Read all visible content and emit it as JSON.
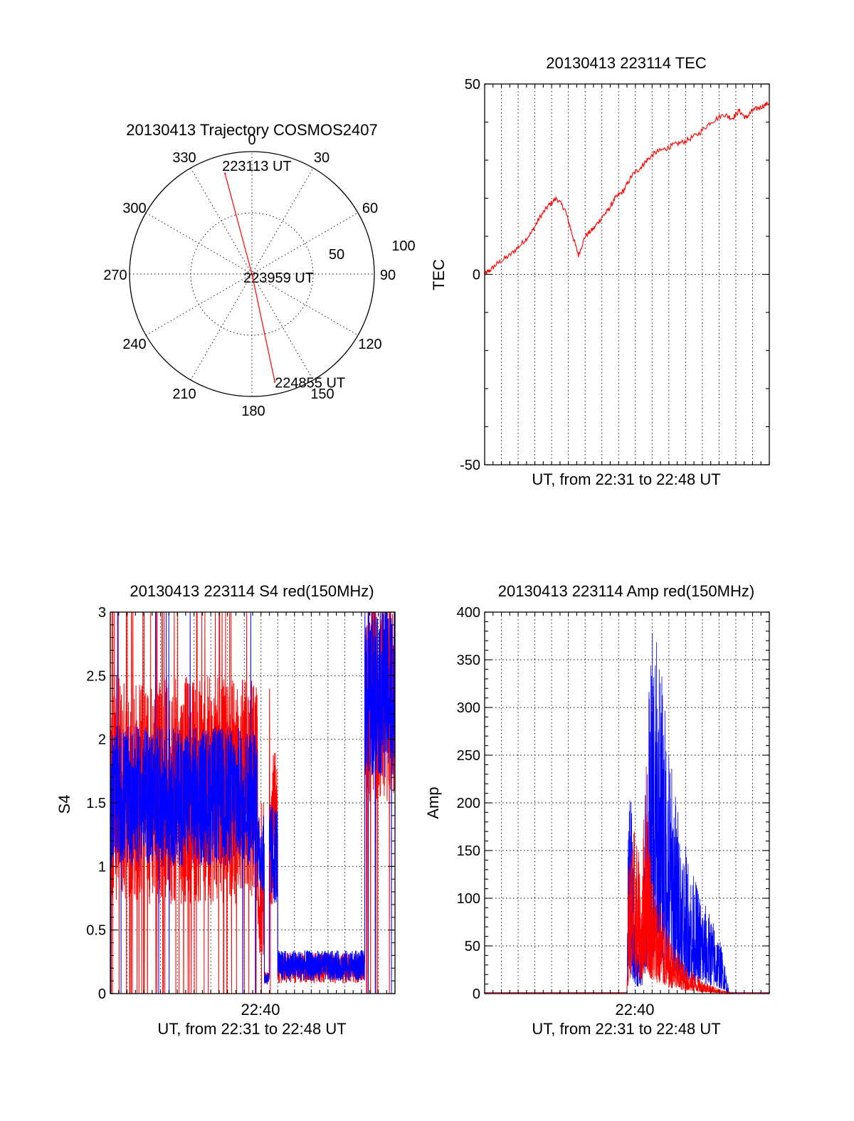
{
  "colors": {
    "red": "#ff0000",
    "blue": "#0000ff",
    "axes": "#000000",
    "background": "#ffffff"
  },
  "chart_data": [
    {
      "type": "polar",
      "title": "20130413 Trajectory COSMOS2407",
      "angle_labels": [
        "0",
        "30",
        "60",
        "90",
        "120",
        "150",
        "180",
        "210",
        "240",
        "270",
        "300",
        "330"
      ],
      "radius_labels": [
        "50",
        "100"
      ],
      "radius_values": [
        50,
        100
      ],
      "angle_direction": "clockwise from top",
      "series": [
        {
          "color": "red",
          "points": [
            {
              "angle": 345,
              "radius": 85,
              "label": "223113 UT"
            },
            {
              "angle": 0,
              "radius": 0,
              "label": "223959 UT"
            },
            {
              "angle": 168,
              "radius": 90,
              "label": "224855 UT"
            }
          ]
        }
      ]
    },
    {
      "type": "line",
      "title": "20130413 223114 TEC",
      "xlabel": "UT, from 22:31 to 22:48 UT",
      "ylabel": "TEC",
      "ylim": [
        -50,
        50
      ],
      "yticks": [
        -50,
        0,
        50
      ],
      "xlim_minutes": [
        0,
        17
      ],
      "xgrid_minutes": [
        1,
        2,
        3,
        4,
        5,
        6,
        7,
        8,
        9,
        10,
        11,
        12,
        13,
        14,
        15,
        16
      ],
      "ygrid": [
        0
      ],
      "series": [
        {
          "color": "red",
          "x_minutes": [
            0,
            0.3,
            0.8,
            1.5,
            2.2,
            2.8,
            3.3,
            3.8,
            4.3,
            4.8,
            5.2,
            5.6,
            6.0,
            6.5,
            7.0,
            7.4,
            7.8,
            8.3,
            8.8,
            9.3,
            9.7,
            10.2,
            10.8,
            11.3,
            12.0,
            12.8,
            13.5,
            14.3,
            14.8,
            15.2,
            15.6,
            16.0,
            16.5,
            17.0
          ],
          "y": [
            0,
            1,
            3,
            5,
            8,
            11,
            15,
            18,
            20,
            17,
            11,
            5,
            10,
            12,
            15,
            17,
            20,
            22,
            26,
            28,
            30,
            32,
            33,
            34,
            35,
            37,
            40,
            42,
            41,
            43,
            41,
            43,
            44,
            45
          ]
        }
      ]
    },
    {
      "type": "line",
      "title": "20130413 223114 S4 red(150MHz)",
      "xlabel": "UT, from 22:31 to 22:48 UT",
      "ylabel": "S4",
      "xtick_label": "22:40",
      "ylim": [
        0,
        3
      ],
      "yticks": [
        "0",
        "0.5",
        "1",
        "1.5",
        "2",
        "2.5",
        "3"
      ],
      "ytick_values": [
        0,
        0.5,
        1,
        1.5,
        2,
        2.5,
        3
      ],
      "xlim_minutes": [
        0,
        17
      ],
      "xgrid_minutes": [
        1,
        2,
        3,
        4,
        5,
        6,
        7,
        8,
        9,
        10,
        11,
        12,
        13,
        14,
        15,
        16
      ],
      "ygrid": [
        0.5,
        1,
        1.5,
        2,
        2.5
      ],
      "series": [
        {
          "color": "red",
          "segments": [
            {
              "x_start": 0,
              "x_end": 8.8,
              "mean": 1.6,
              "spread": 0.9,
              "spikes_to": 3,
              "spike_density": 0.5
            },
            {
              "x_start": 8.8,
              "x_end": 9.2,
              "mean": 0.7,
              "spread": 0.4,
              "spikes_to": 1.5,
              "spike_density": 0.2
            },
            {
              "x_start": 9.2,
              "x_end": 9.5,
              "mean": 0.12,
              "spread": 0.05,
              "spikes_to": 0.2,
              "spike_density": 0
            },
            {
              "x_start": 9.5,
              "x_end": 10.0,
              "mean": 1.3,
              "spread": 0.6,
              "spikes_to": 2.4,
              "spike_density": 0.2
            },
            {
              "x_start": 10.0,
              "x_end": 15.2,
              "mean": 0.2,
              "spread": 0.12,
              "spikes_to": 0.5,
              "spike_density": 0
            },
            {
              "x_start": 15.2,
              "x_end": 17.0,
              "mean": 2.3,
              "spread": 0.8,
              "spikes_to": 3,
              "spike_density": 0.3
            }
          ]
        },
        {
          "color": "blue",
          "segments": [
            {
              "x_start": 0,
              "x_end": 8.8,
              "mean": 1.55,
              "spread": 0.55,
              "spikes_to": 3,
              "spike_density": 0.05
            },
            {
              "x_start": 8.8,
              "x_end": 9.2,
              "mean": 1.1,
              "spread": 0.3,
              "spikes_to": 1.5,
              "spike_density": 0
            },
            {
              "x_start": 9.2,
              "x_end": 9.5,
              "mean": 0.12,
              "spread": 0.05,
              "spikes_to": 0.2,
              "spike_density": 0
            },
            {
              "x_start": 9.5,
              "x_end": 10.0,
              "mean": 1.1,
              "spread": 0.4,
              "spikes_to": 1.5,
              "spike_density": 0
            },
            {
              "x_start": 10.0,
              "x_end": 15.2,
              "mean": 0.22,
              "spread": 0.12,
              "spikes_to": 0.55,
              "spike_density": 0
            },
            {
              "x_start": 15.2,
              "x_end": 17.0,
              "mean": 2.4,
              "spread": 0.7,
              "spikes_to": 3,
              "spike_density": 0.1
            }
          ]
        }
      ]
    },
    {
      "type": "line",
      "title": "20130413 223114 Amp red(150MHz)",
      "xlabel": "UT, from 22:31 to 22:48 UT",
      "ylabel": "Amp",
      "xtick_label": "22:40",
      "ylim": [
        0,
        400
      ],
      "yticks": [
        "0",
        "50",
        "100",
        "150",
        "200",
        "250",
        "300",
        "350",
        "400"
      ],
      "ytick_values": [
        0,
        50,
        100,
        150,
        200,
        250,
        300,
        350,
        400
      ],
      "xlim_minutes": [
        0,
        17
      ],
      "xgrid_minutes": [
        1,
        2,
        3,
        4,
        5,
        6,
        7,
        8,
        9,
        10,
        11,
        12,
        13,
        14,
        15,
        16
      ],
      "ygrid": [
        50,
        100,
        150,
        200,
        250,
        300,
        350
      ],
      "series": [
        {
          "color": "red",
          "envelope": [
            [
              0,
              0
            ],
            [
              8.5,
              0
            ],
            [
              8.6,
              150
            ],
            [
              9.0,
              180
            ],
            [
              9.4,
              120
            ],
            [
              9.6,
              270
            ],
            [
              10.0,
              130
            ],
            [
              10.5,
              100
            ],
            [
              11.0,
              60
            ],
            [
              12.0,
              30
            ],
            [
              13.0,
              15
            ],
            [
              14.0,
              5
            ],
            [
              15.0,
              0
            ],
            [
              17.0,
              0
            ]
          ]
        },
        {
          "color": "blue",
          "envelope": [
            [
              0,
              0
            ],
            [
              8.5,
              0
            ],
            [
              8.6,
              290
            ],
            [
              8.9,
              120
            ],
            [
              9.2,
              60
            ],
            [
              9.4,
              80
            ],
            [
              9.7,
              300
            ],
            [
              10.0,
              380
            ],
            [
              10.4,
              370
            ],
            [
              10.8,
              300
            ],
            [
              11.2,
              240
            ],
            [
              11.8,
              170
            ],
            [
              12.4,
              130
            ],
            [
              13.0,
              100
            ],
            [
              13.6,
              80
            ],
            [
              14.0,
              60
            ],
            [
              14.3,
              40
            ],
            [
              14.6,
              0
            ],
            [
              17.0,
              0
            ]
          ]
        }
      ]
    }
  ]
}
